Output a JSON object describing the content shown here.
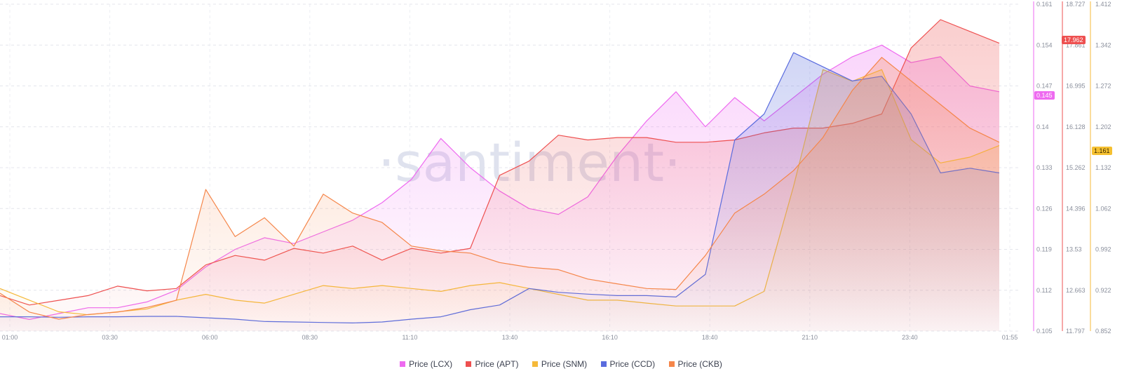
{
  "watermark": "·santiment·",
  "chart_data": {
    "type": "area",
    "title": "",
    "x_ticks": [
      "01:00",
      "03:30",
      "06:00",
      "08:30",
      "11:10",
      "13:40",
      "16:10",
      "18:40",
      "21:10",
      "23:40",
      "01:55"
    ],
    "series": [
      {
        "name": "Price (LCX)",
        "color": "#ee6af0",
        "axis": "lcx",
        "values": [
          0.108,
          0.107,
          0.108,
          0.109,
          0.109,
          0.11,
          0.112,
          0.116,
          0.119,
          0.121,
          0.12,
          0.122,
          0.124,
          0.127,
          0.131,
          0.138,
          0.133,
          0.129,
          0.126,
          0.125,
          0.128,
          0.135,
          0.141,
          0.146,
          0.14,
          0.145,
          0.141,
          0.145,
          0.149,
          0.152,
          0.154,
          0.151,
          0.152,
          0.147,
          0.146
        ]
      },
      {
        "name": "Price (APT)",
        "color": "#ee5050",
        "axis": "apt",
        "values": [
          12.55,
          12.35,
          12.45,
          12.55,
          12.75,
          12.65,
          12.7,
          13.2,
          13.4,
          13.3,
          13.55,
          13.45,
          13.6,
          13.3,
          13.55,
          13.45,
          13.55,
          15.1,
          15.4,
          15.95,
          15.85,
          15.9,
          15.9,
          15.8,
          15.8,
          15.85,
          16.0,
          16.1,
          16.1,
          16.2,
          16.4,
          17.8,
          18.4,
          18.15,
          17.9
        ]
      },
      {
        "name": "Price (SNM)",
        "color": "#f5b93a",
        "axis": "snm",
        "values": [
          0.925,
          0.905,
          0.885,
          0.88,
          0.885,
          0.89,
          0.905,
          0.915,
          0.905,
          0.9,
          0.915,
          0.93,
          0.925,
          0.93,
          0.925,
          0.92,
          0.93,
          0.935,
          0.925,
          0.915,
          0.905,
          0.905,
          0.9,
          0.895,
          0.895,
          0.895,
          0.92,
          1.1,
          1.3,
          1.28,
          1.3,
          1.18,
          1.14,
          1.15,
          1.17
        ]
      },
      {
        "name": "Price (CCD)",
        "color": "#5a6cde",
        "axis": "apt",
        "values": [
          12.1,
          12.1,
          12.09,
          12.1,
          12.1,
          12.11,
          12.11,
          12.08,
          12.05,
          12.0,
          11.99,
          11.98,
          11.97,
          11.99,
          12.05,
          12.1,
          12.25,
          12.35,
          12.7,
          12.62,
          12.58,
          12.55,
          12.55,
          12.52,
          13.0,
          15.85,
          16.4,
          17.7,
          17.4,
          17.1,
          17.2,
          16.4,
          15.15,
          15.25,
          15.15
        ]
      },
      {
        "name": "Price (CKB)",
        "color": "#f5864a",
        "axis": "apt",
        "values": [
          12.6,
          12.2,
          12.05,
          12.15,
          12.2,
          12.3,
          12.45,
          14.8,
          13.8,
          14.2,
          13.6,
          14.7,
          14.3,
          14.1,
          13.6,
          13.5,
          13.45,
          13.25,
          13.15,
          13.1,
          12.9,
          12.8,
          12.7,
          12.68,
          13.4,
          14.3,
          14.7,
          15.2,
          15.9,
          16.9,
          17.6,
          17.1,
          16.6,
          16.1,
          15.8
        ]
      }
    ],
    "axes": {
      "lcx": {
        "color": "#ee6af0",
        "ticks": [
          "0.161",
          "0.154",
          "0.147",
          "0.14",
          "0.133",
          "0.126",
          "0.119",
          "0.112",
          "0.105"
        ],
        "ylim": [
          0.105,
          0.161
        ],
        "last": "0.145"
      },
      "apt": {
        "color": "#ee5050",
        "ticks": [
          "18.727",
          "17.861",
          "16.995",
          "16.128",
          "15.262",
          "14.396",
          "13.53",
          "12.663",
          "11.797"
        ],
        "ylim": [
          11.797,
          18.727
        ],
        "last": "17.962"
      },
      "snm": {
        "color": "#f5b93a",
        "ticks": [
          "1.412",
          "1.342",
          "1.272",
          "1.202",
          "1.132",
          "1.062",
          "0.992",
          "0.922",
          "0.852"
        ],
        "ylim": [
          0.852,
          1.412
        ],
        "last": "1.161"
      }
    },
    "grid": true,
    "legend_position": "bottom"
  }
}
